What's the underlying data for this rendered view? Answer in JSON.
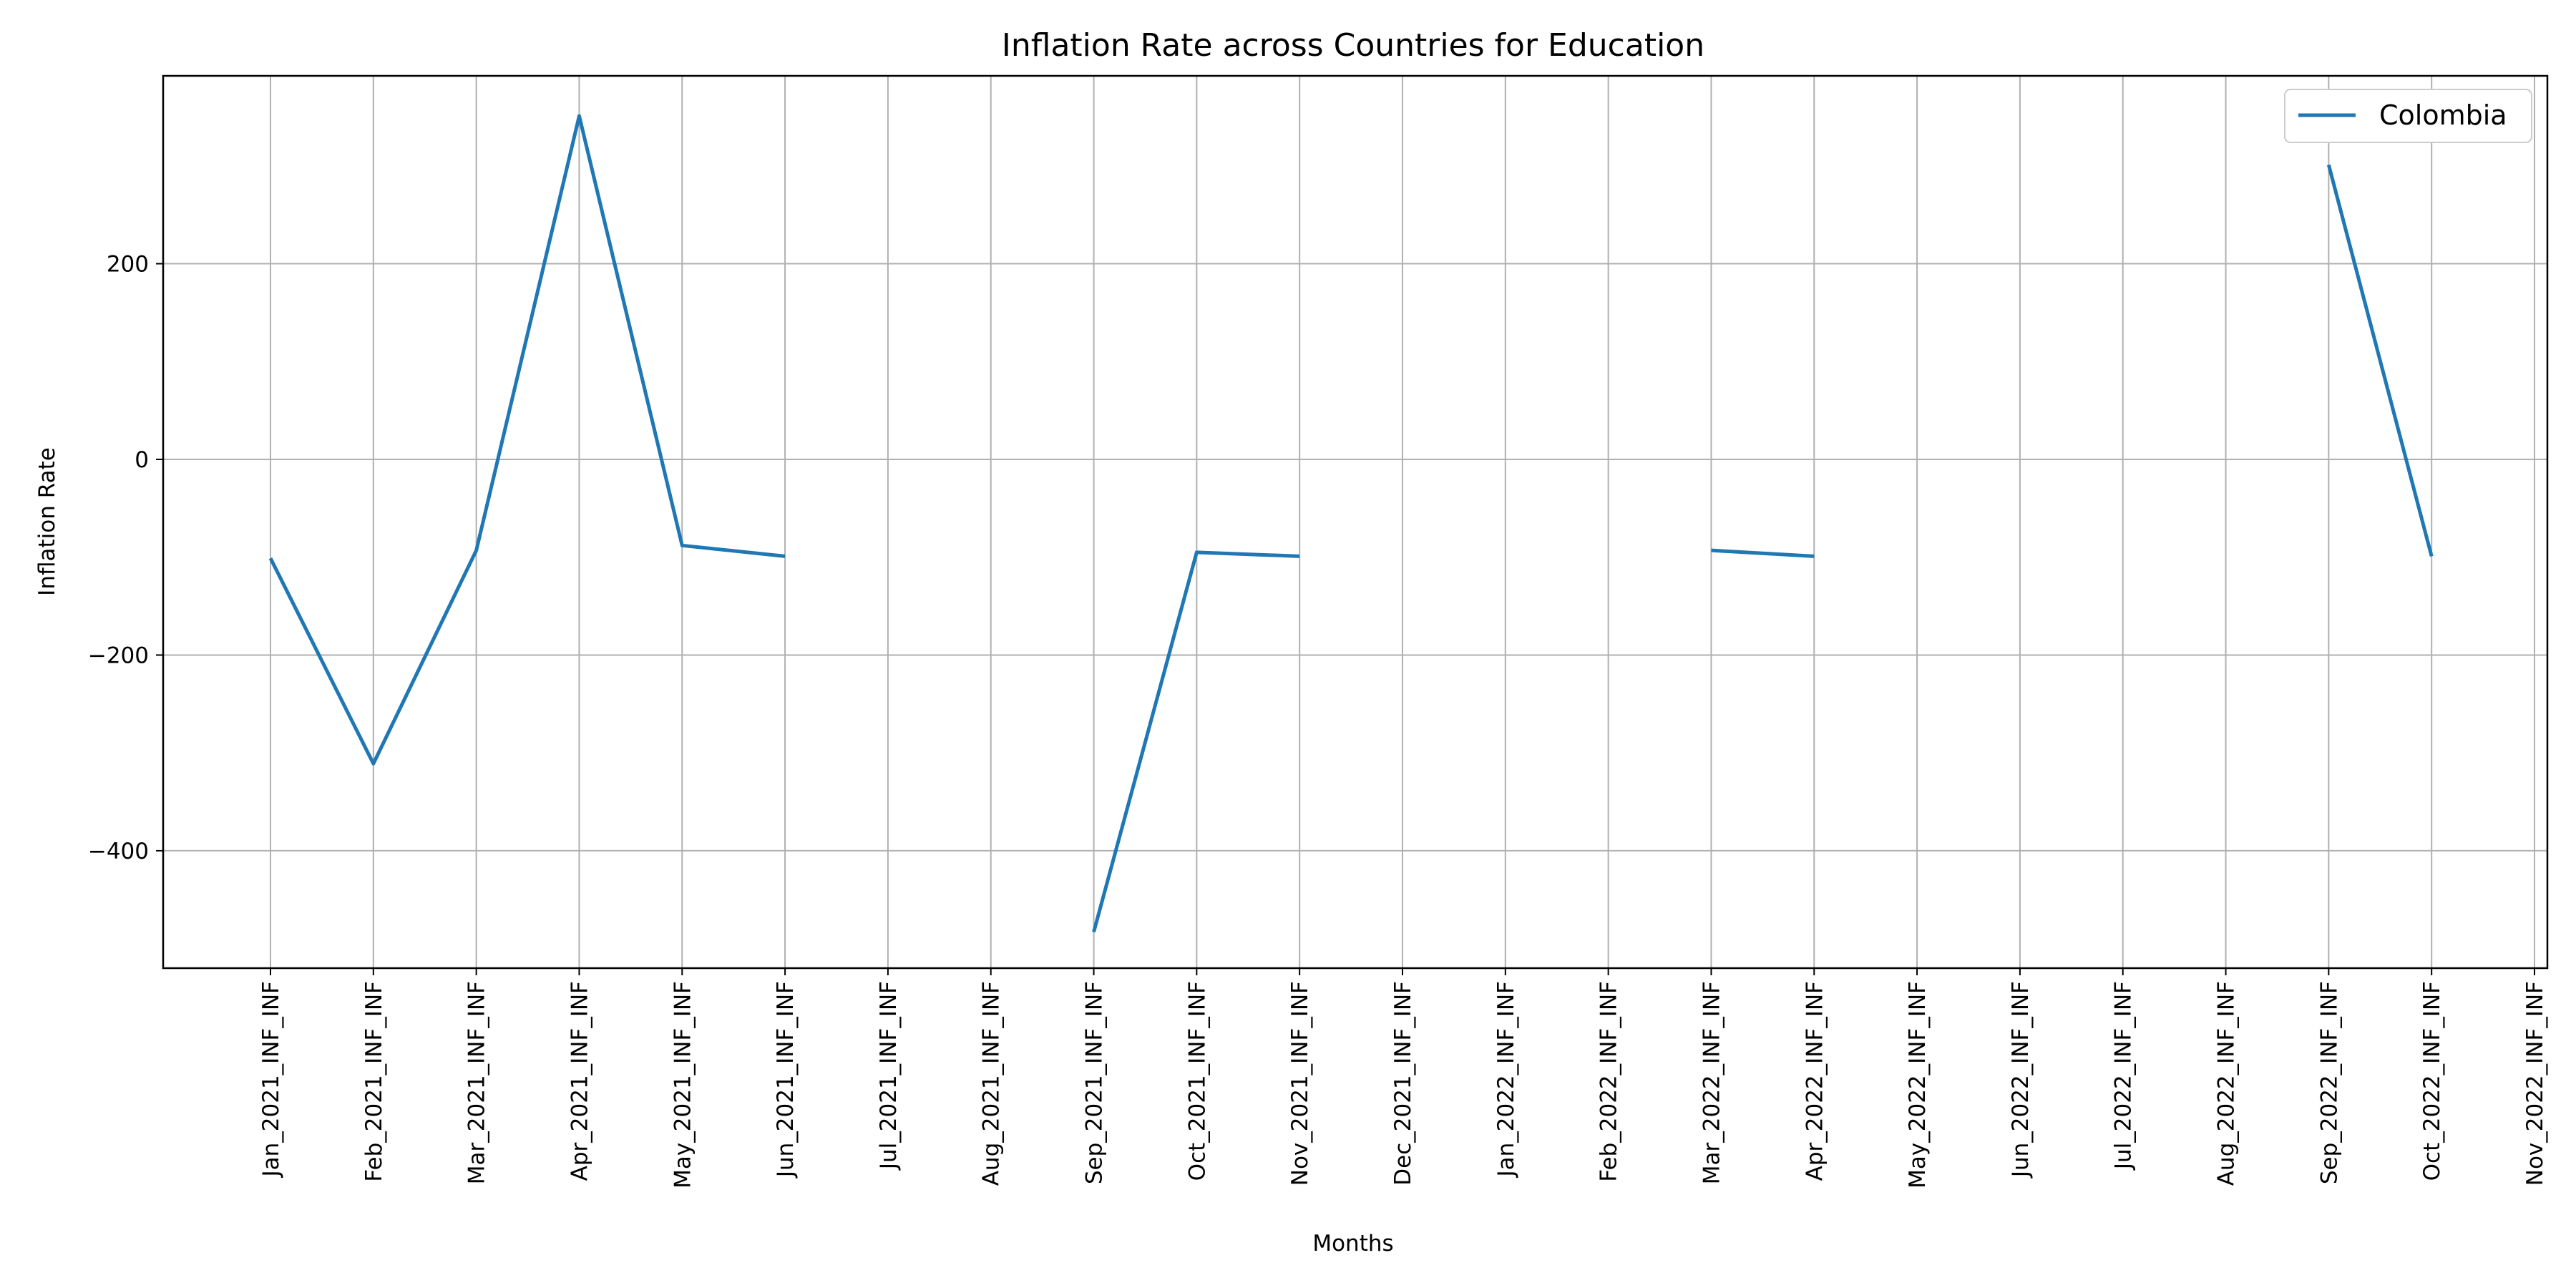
{
  "chart_data": {
    "type": "line",
    "title": "Inflation Rate across Countries for Education",
    "xlabel": "Months",
    "ylabel": "Inflation Rate",
    "categories": [
      "Jan_2021_INF_INF",
      "Feb_2021_INF_INF",
      "Mar_2021_INF_INF",
      "Apr_2021_INF_INF",
      "May_2021_INF_INF",
      "Jun_2021_INF_INF",
      "Jul_2021_INF_INF",
      "Aug_2021_INF_INF",
      "Sep_2021_INF_INF",
      "Oct_2021_INF_INF",
      "Nov_2021_INF_INF",
      "Dec_2021_INF_INF",
      "Jan_2022_INF_INF",
      "Feb_2022_INF_INF",
      "Mar_2022_INF_INF",
      "Apr_2022_INF_INF",
      "May_2022_INF_INF",
      "Jun_2022_INF_INF",
      "Jul_2022_INF_INF",
      "Aug_2022_INF_INF",
      "Sep_2022_INF_INF",
      "Oct_2022_INF_INF",
      "Nov_2022_INF_INF"
    ],
    "series": [
      {
        "name": "Colombia",
        "color": "#1f77b4",
        "values": [
          -101,
          -311,
          -93,
          351,
          -88,
          -99,
          null,
          null,
          -483,
          -95,
          -99,
          null,
          null,
          null,
          -93,
          -99,
          null,
          null,
          null,
          null,
          301,
          -99,
          null
        ]
      }
    ],
    "ylim": [
      -520,
      392
    ],
    "yticks": [
      -400,
      -200,
      0,
      200
    ],
    "grid": true,
    "legend_position": "top-right"
  }
}
